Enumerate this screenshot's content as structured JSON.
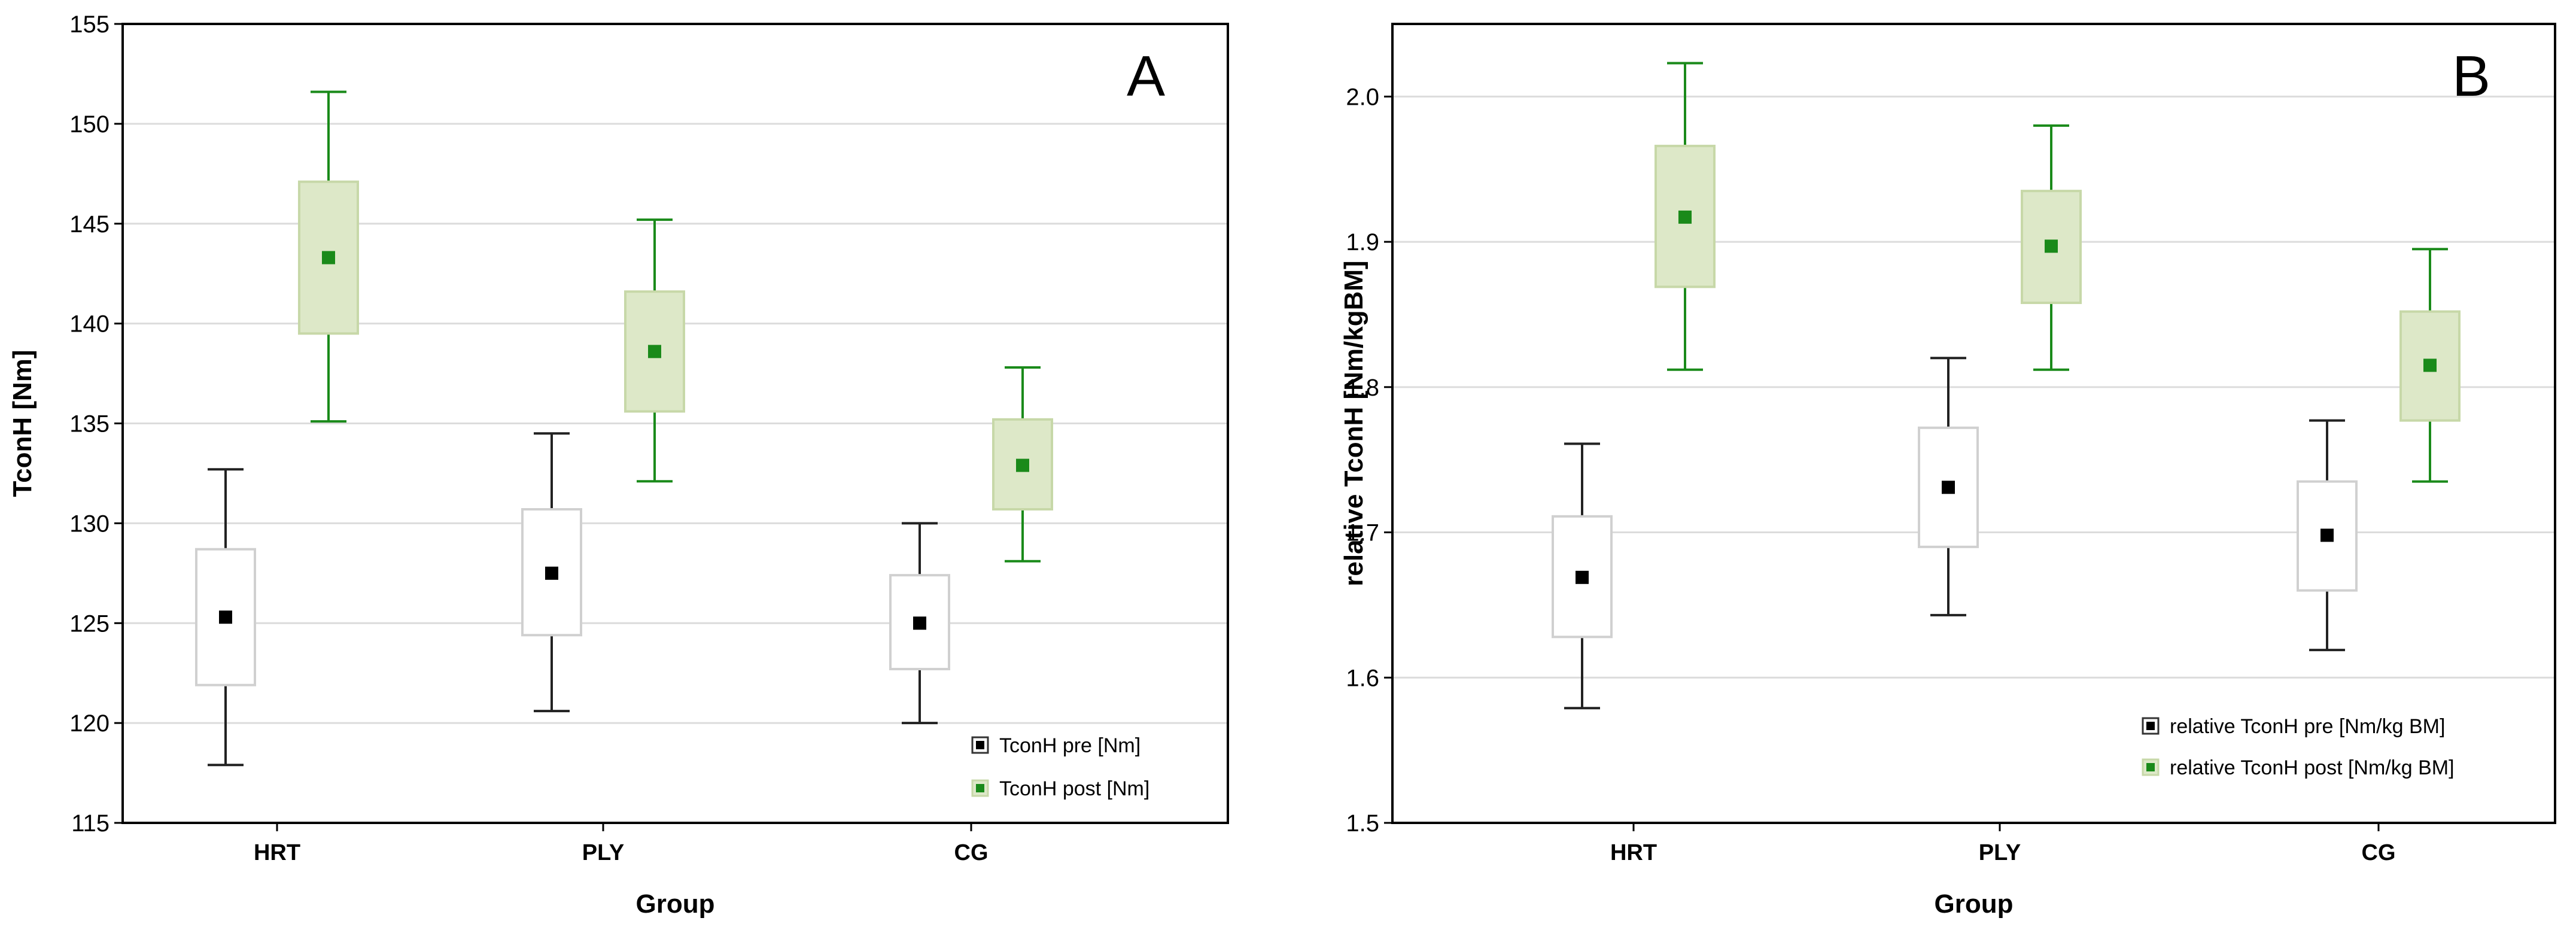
{
  "chart_data": [
    {
      "type": "box",
      "panel_label": "A",
      "xlabel": "Group",
      "ylabel": "TconH [Nm]",
      "ylim": [
        115,
        155
      ],
      "yticks": [
        115,
        120,
        125,
        130,
        135,
        140,
        145,
        150,
        155
      ],
      "ytick_labels": [
        "115",
        "120",
        "125",
        "130",
        "135",
        "140",
        "145",
        "150",
        "155"
      ],
      "grid": true,
      "categories": [
        "HRT",
        "PLY",
        "CG"
      ],
      "legend_position": "bottom-right",
      "series": [
        {
          "name": "TconH pre [Nm]",
          "color": "#222222",
          "box_fill": "#ffffff",
          "box_stroke": "#d0d0d0",
          "mean": [
            125.3,
            127.5,
            125.0
          ],
          "box_low": [
            121.9,
            124.4,
            122.7
          ],
          "box_high": [
            128.7,
            130.7,
            127.4
          ],
          "whisker_low": [
            117.9,
            120.6,
            120.0
          ],
          "whisker_high": [
            132.7,
            134.5,
            130.0
          ]
        },
        {
          "name": "TconH post [Nm]",
          "color": "#1a8a1a",
          "box_fill": "#dde8c8",
          "box_stroke": "#c7d8a8",
          "mean": [
            143.3,
            138.6,
            132.9
          ],
          "box_low": [
            139.5,
            135.6,
            130.7
          ],
          "box_high": [
            147.1,
            141.6,
            135.2
          ],
          "whisker_low": [
            135.1,
            132.1,
            128.1
          ],
          "whisker_high": [
            151.6,
            145.2,
            137.8
          ]
        }
      ]
    },
    {
      "type": "box",
      "panel_label": "B",
      "xlabel": "Group",
      "ylabel": "relative TconH [Nm/kgBM]",
      "ylim": [
        1.5,
        2.05
      ],
      "yticks": [
        1.5,
        1.6,
        1.7,
        1.8,
        1.9,
        2.0
      ],
      "ytick_labels": [
        "1.5",
        "1.6",
        "1.7",
        "1.8",
        "1.9",
        "2.0"
      ],
      "grid": true,
      "categories": [
        "HRT",
        "PLY",
        "CG"
      ],
      "legend_position": "bottom-right",
      "series": [
        {
          "name": "relative TconH pre [Nm/kg BM]",
          "color": "#222222",
          "box_fill": "#ffffff",
          "box_stroke": "#d0d0d0",
          "mean": [
            1.669,
            1.731,
            1.698
          ],
          "box_low": [
            1.628,
            1.69,
            1.66
          ],
          "box_high": [
            1.711,
            1.772,
            1.735
          ],
          "whisker_low": [
            1.579,
            1.643,
            1.619
          ],
          "whisker_high": [
            1.761,
            1.82,
            1.777
          ]
        },
        {
          "name": "relative TconH post [Nm/kg BM]",
          "color": "#1a8a1a",
          "box_fill": "#dde8c8",
          "box_stroke": "#c7d8a8",
          "mean": [
            1.917,
            1.897,
            1.815
          ],
          "box_low": [
            1.869,
            1.858,
            1.777
          ],
          "box_high": [
            1.966,
            1.935,
            1.852
          ],
          "whisker_low": [
            1.812,
            1.812,
            1.735
          ],
          "whisker_high": [
            2.023,
            1.98,
            1.895
          ]
        }
      ]
    }
  ]
}
